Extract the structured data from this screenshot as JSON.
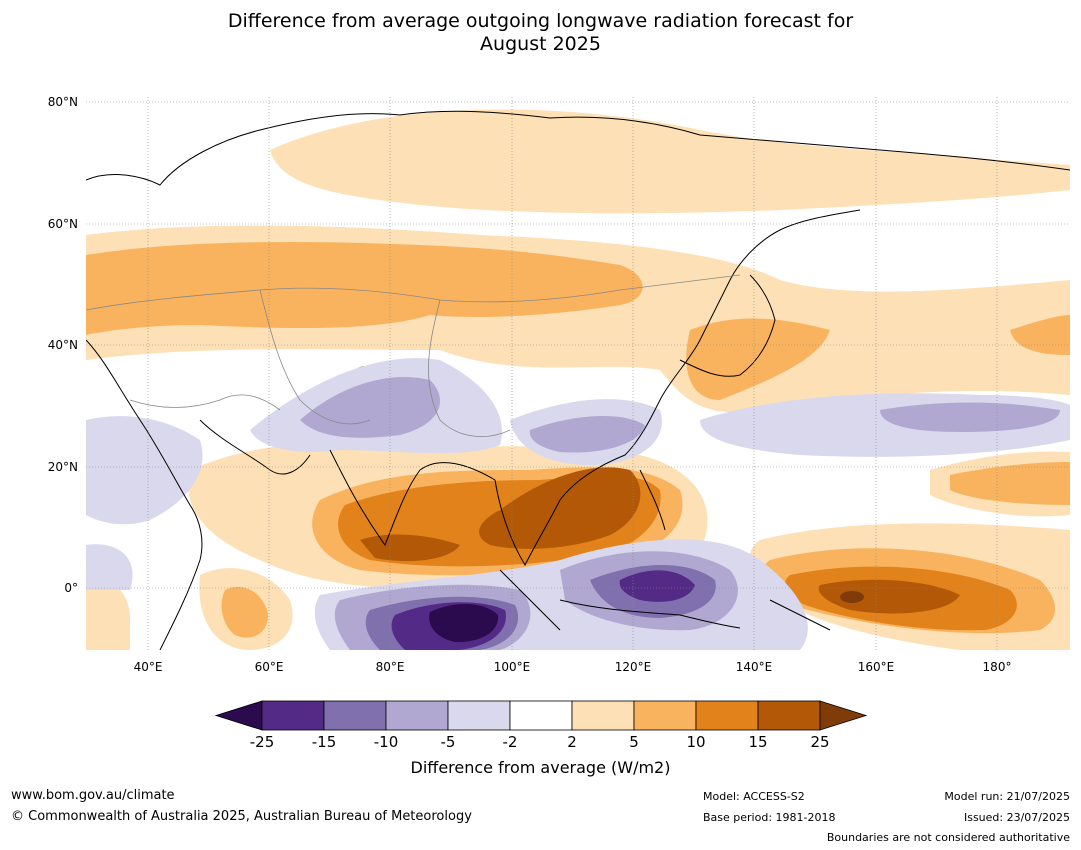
{
  "title_line1": "Difference from average outgoing longwave radiation forecast for",
  "title_line2": "August 2025",
  "map": {
    "lat_labels": [
      "80°N",
      "60°N",
      "40°N",
      "20°N",
      "0°"
    ],
    "lon_labels": [
      "40°E",
      "60°E",
      "80°E",
      "100°E",
      "120°E",
      "140°E",
      "160°E",
      "180°"
    ]
  },
  "legend": {
    "ticks": [
      "-25",
      "-15",
      "-10",
      "-5",
      "-2",
      "2",
      "5",
      "10",
      "15",
      "25"
    ],
    "colors": [
      "#2b0a4d",
      "#542a87",
      "#8070ad",
      "#b0a8d1",
      "#d9d8ec",
      "#ffffff",
      "#fde0b5",
      "#f9b35e",
      "#e2821a",
      "#b35806",
      "#7f3b08"
    ],
    "label": "Difference from average (W/m2)"
  },
  "footer": {
    "website": "www.bom.gov.au/climate",
    "copyright": "© Commonwealth of Australia 2025, Australian Bureau of Meteorology",
    "model": "Model: ACCESS-S2",
    "base_period": "Base period: 1981-2018",
    "model_run": "Model run: 21/07/2025",
    "issued": "Issued: 23/07/2025",
    "disclaimer": "Boundaries are not considered authoritative"
  }
}
